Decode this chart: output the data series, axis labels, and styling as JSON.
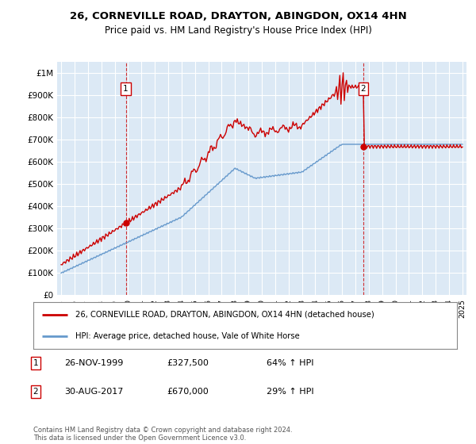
{
  "title": "26, CORNEVILLE ROAD, DRAYTON, ABINGDON, OX14 4HN",
  "subtitle": "Price paid vs. HM Land Registry's House Price Index (HPI)",
  "title_fontsize": 9.5,
  "subtitle_fontsize": 8.5,
  "background_color": "#ffffff",
  "plot_bg_color": "#dce9f5",
  "grid_color": "#ffffff",
  "red_line_color": "#cc0000",
  "blue_line_color": "#6699cc",
  "purchase1_price": 327500,
  "purchase1_year": 1999,
  "purchase1_month": 11,
  "purchase2_price": 670000,
  "purchase2_year": 2017,
  "purchase2_month": 8,
  "legend_line1": "26, CORNEVILLE ROAD, DRAYTON, ABINGDON, OX14 4HN (detached house)",
  "legend_line2": "HPI: Average price, detached house, Vale of White Horse",
  "note1_date": "26-NOV-1999",
  "note1_price": "£327,500",
  "note1_hpi": "64% ↑ HPI",
  "note2_date": "30-AUG-2017",
  "note2_price": "£670,000",
  "note2_hpi": "29% ↑ HPI",
  "footer": "Contains HM Land Registry data © Crown copyright and database right 2024.\nThis data is licensed under the Open Government Licence v3.0.",
  "ylim": [
    0,
    1050000
  ],
  "yticks": [
    0,
    100000,
    200000,
    300000,
    400000,
    500000,
    600000,
    700000,
    800000,
    900000,
    1000000
  ],
  "ytick_labels": [
    "£0",
    "£100K",
    "£200K",
    "£300K",
    "£400K",
    "£500K",
    "£600K",
    "£700K",
    "£800K",
    "£900K",
    "£1M"
  ],
  "xmin": 1994.7,
  "xmax": 2025.3
}
